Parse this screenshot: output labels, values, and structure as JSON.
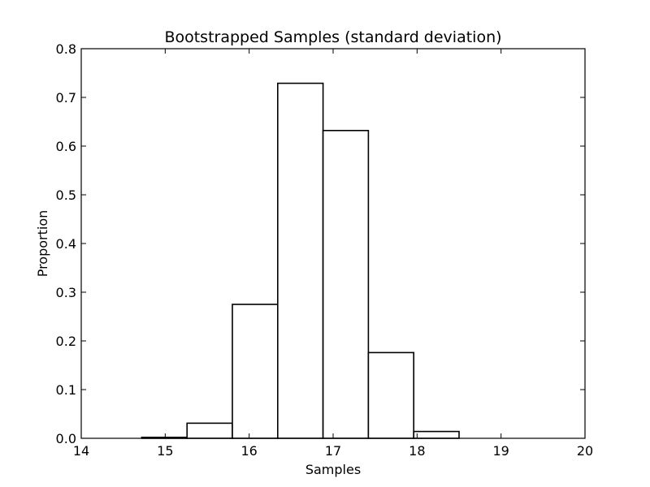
{
  "chart_data": {
    "type": "bar",
    "title": "Bootstrapped Samples (standard deviation)",
    "xlabel": "Samples",
    "ylabel": "Proportion",
    "xlim": [
      14,
      20
    ],
    "ylim": [
      0,
      0.8
    ],
    "xticks": [
      "14",
      "15",
      "16",
      "17",
      "18",
      "19",
      "20"
    ],
    "yticks": [
      "0.0",
      "0.1",
      "0.2",
      "0.3",
      "0.4",
      "0.5",
      "0.6",
      "0.7",
      "0.8"
    ],
    "bins": [
      {
        "x0": 14.72,
        "x1": 15.26,
        "value": 0.002
      },
      {
        "x0": 15.26,
        "x1": 15.8,
        "value": 0.031
      },
      {
        "x0": 15.8,
        "x1": 16.34,
        "value": 0.275
      },
      {
        "x0": 16.34,
        "x1": 16.88,
        "value": 0.729
      },
      {
        "x0": 16.88,
        "x1": 17.42,
        "value": 0.632
      },
      {
        "x0": 17.42,
        "x1": 17.96,
        "value": 0.176
      },
      {
        "x0": 17.96,
        "x1": 18.5,
        "value": 0.014
      }
    ],
    "grid": false,
    "colors": {
      "bar_fill": "#ffffff",
      "bar_edge": "#000000"
    }
  }
}
